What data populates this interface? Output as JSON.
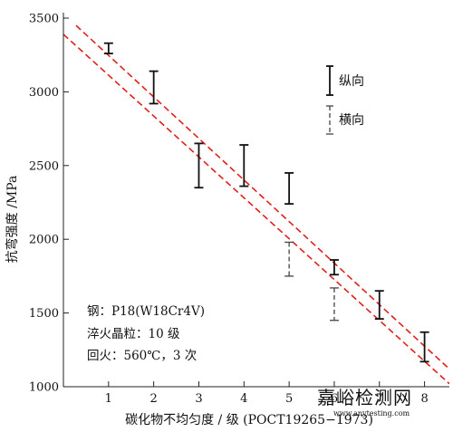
{
  "chart_data": {
    "type": "scatter",
    "title": "",
    "xlabel": "碳化物不均匀度 / 级 (POCT19265−1973)",
    "ylabel": "抗弯强度 /MPa",
    "xlim": [
      0,
      8.55
    ],
    "ylim": [
      1000,
      3500
    ],
    "x_ticks": [
      "1",
      "2",
      "3",
      "4",
      "5",
      "6",
      "7",
      "8"
    ],
    "y_ticks": [
      "1000",
      "1500",
      "2000",
      "2500",
      "3000",
      "3500"
    ],
    "grid": false,
    "legend_position": "top-right",
    "series": [
      {
        "name": "纵向",
        "style": "solid",
        "color": "#111111",
        "points": [
          {
            "x": 1,
            "low": 3260,
            "high": 3330
          },
          {
            "x": 2,
            "low": 2920,
            "high": 3140
          },
          {
            "x": 3,
            "low": 2350,
            "high": 2650
          },
          {
            "x": 4,
            "low": 2360,
            "high": 2640
          },
          {
            "x": 5,
            "low": 2240,
            "high": 2450
          },
          {
            "x": 6,
            "low": 1760,
            "high": 1860
          },
          {
            "x": 7,
            "low": 1460,
            "high": 1650
          },
          {
            "x": 8,
            "low": 1170,
            "high": 1370
          }
        ]
      },
      {
        "name": "横向",
        "style": "dashed",
        "color": "#444444",
        "points": [
          {
            "x": 5,
            "low": 1750,
            "high": 1980
          },
          {
            "x": 6,
            "low": 1450,
            "high": 1670
          }
        ]
      }
    ],
    "band_lines": {
      "color": "#e0201a",
      "style": "dashed",
      "lines": [
        {
          "x1": 0.28,
          "y1": 3450,
          "x2": 8.55,
          "y2": 1120
        },
        {
          "x1": 0,
          "y1": 3390,
          "x2": 8.55,
          "y2": 1020
        }
      ]
    },
    "annotations": [
      "钢：P18(W18Cr4V)",
      "淬火晶粒：10 级",
      "回火：560℃，3 次"
    ]
  },
  "watermark": {
    "text": "嘉峪检测网",
    "sub": "www.anytesting.com"
  }
}
